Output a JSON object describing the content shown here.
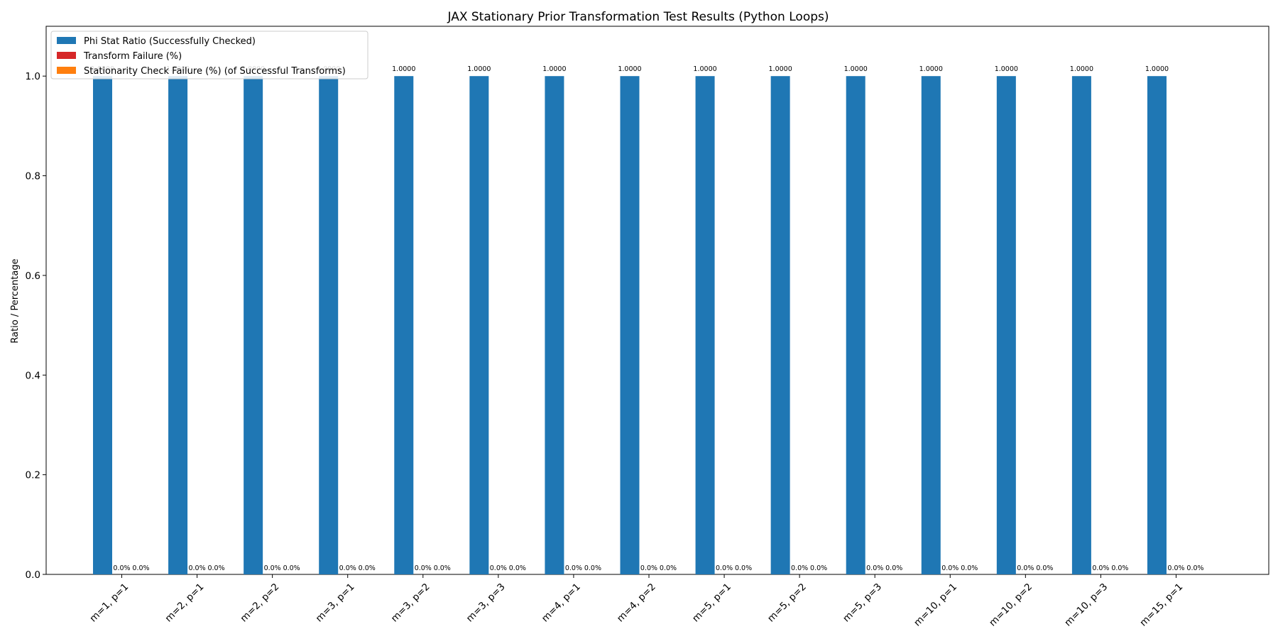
{
  "chart_data": {
    "type": "bar",
    "title": "JAX Stationary Prior Transformation Test Results (Python Loops)",
    "xlabel": "",
    "ylabel": "Ratio / Percentage",
    "ylim": [
      0,
      1.1
    ],
    "yticks": [
      0.0,
      0.2,
      0.4,
      0.6,
      0.8,
      1.0
    ],
    "ytick_labels": [
      "0.0",
      "0.2",
      "0.4",
      "0.6",
      "0.8",
      "1.0"
    ],
    "grid": false,
    "legend_position": "top-left",
    "categories": [
      "m=1, p=1",
      "m=2, p=1",
      "m=2, p=2",
      "m=3, p=1",
      "m=3, p=2",
      "m=3, p=3",
      "m=4, p=1",
      "m=4, p=2",
      "m=5, p=1",
      "m=5, p=2",
      "m=5, p=3",
      "m=10, p=1",
      "m=10, p=2",
      "m=10, p=3",
      "m=15, p=1"
    ],
    "series": [
      {
        "name": "Phi Stat Ratio (Successfully Checked)",
        "color": "#1f77b4",
        "values": [
          1.0,
          1.0,
          1.0,
          1.0,
          1.0,
          1.0,
          1.0,
          1.0,
          1.0,
          1.0,
          1.0,
          1.0,
          1.0,
          1.0,
          1.0
        ],
        "labels": [
          "1.0000",
          "1.0000",
          "1.0000",
          "1.0000",
          "1.0000",
          "1.0000",
          "1.0000",
          "1.0000",
          "1.0000",
          "1.0000",
          "1.0000",
          "1.0000",
          "1.0000",
          "1.0000",
          "1.0000"
        ]
      },
      {
        "name": "Transform Failure (%)",
        "color": "#d62728",
        "values": [
          0,
          0,
          0,
          0,
          0,
          0,
          0,
          0,
          0,
          0,
          0,
          0,
          0,
          0,
          0
        ],
        "labels": [
          "0.0%",
          "0.0%",
          "0.0%",
          "0.0%",
          "0.0%",
          "0.0%",
          "0.0%",
          "0.0%",
          "0.0%",
          "0.0%",
          "0.0%",
          "0.0%",
          "0.0%",
          "0.0%",
          "0.0%"
        ]
      },
      {
        "name": "Stationarity Check Failure (%) (of Successful Transforms)",
        "color": "#ff7f0e",
        "values": [
          0,
          0,
          0,
          0,
          0,
          0,
          0,
          0,
          0,
          0,
          0,
          0,
          0,
          0,
          0
        ],
        "labels": [
          "0.0%",
          "0.0%",
          "0.0%",
          "0.0%",
          "0.0%",
          "0.0%",
          "0.0%",
          "0.0%",
          "0.0%",
          "0.0%",
          "0.0%",
          "0.0%",
          "0.0%",
          "0.0%",
          "0.0%"
        ]
      }
    ]
  }
}
